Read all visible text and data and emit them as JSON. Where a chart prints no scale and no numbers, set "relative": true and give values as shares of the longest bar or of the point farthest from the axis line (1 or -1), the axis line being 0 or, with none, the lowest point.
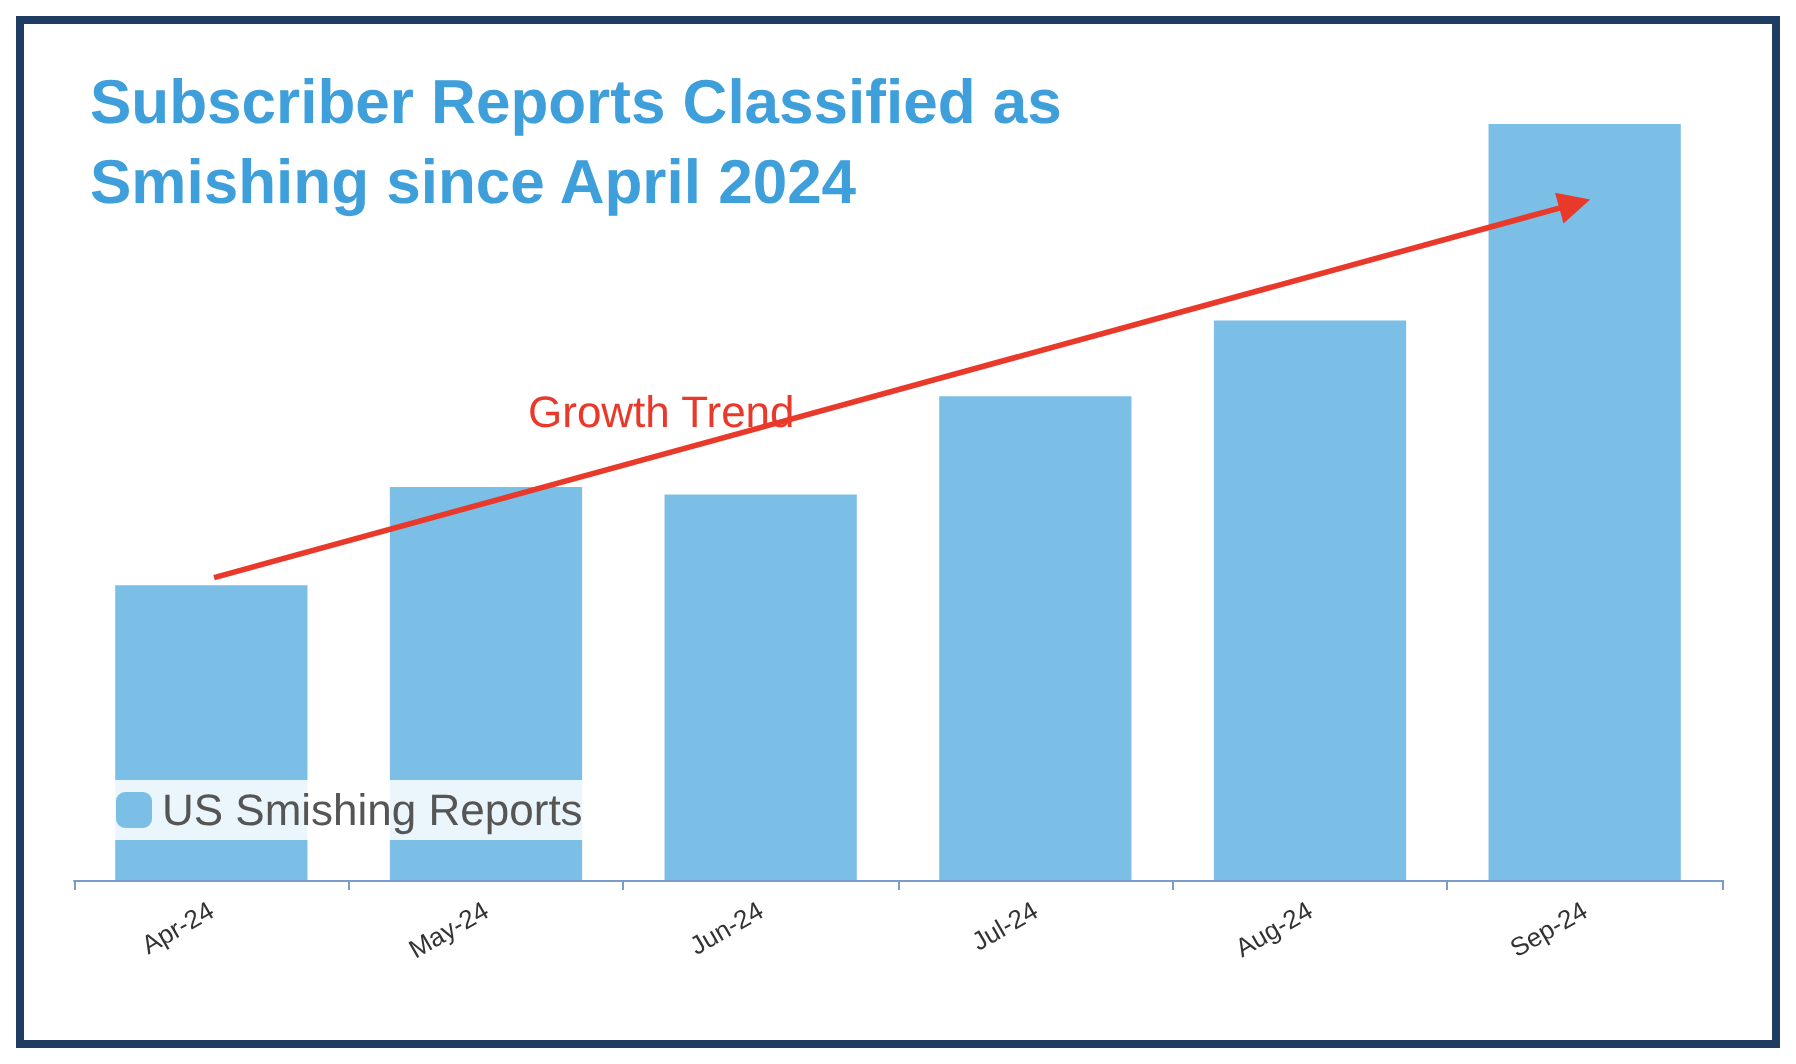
{
  "chart_data": {
    "type": "bar",
    "title": "Subscriber Reports Classified as Smishing since April 2024",
    "categories": [
      "Apr-24",
      "May-24",
      "Jun-24",
      "Jul-24",
      "Aug-24",
      "Sep-24"
    ],
    "series": [
      {
        "name": "US Smishing Reports",
        "color": "#7bbfe6",
        "values": [
          0.39,
          0.52,
          0.51,
          0.64,
          0.74,
          1
        ]
      }
    ],
    "relative": true,
    "legend": "bottom left",
    "annotations": [
      "Growth Trend"
    ]
  }
}
